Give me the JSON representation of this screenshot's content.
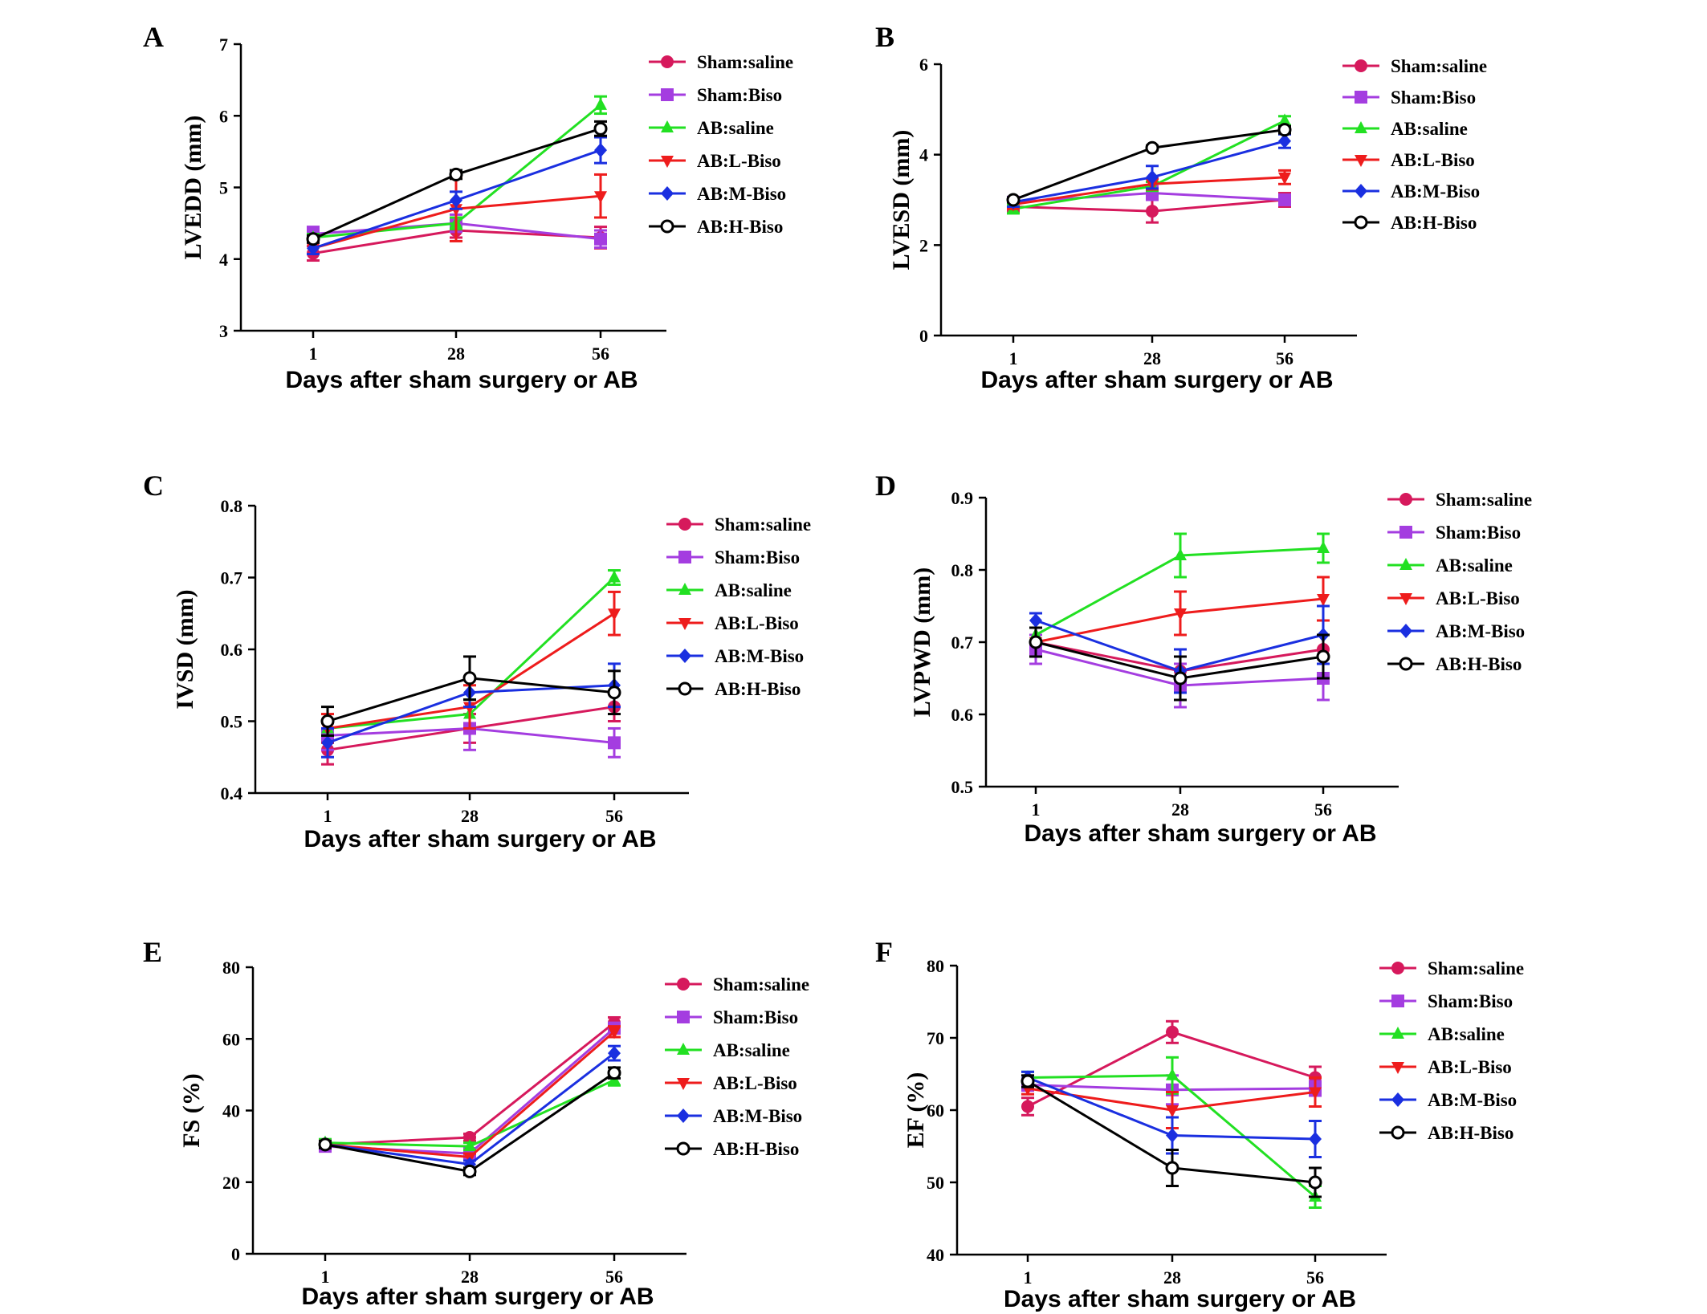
{
  "chart_data": [
    {
      "type": "line",
      "panel": "A",
      "ylabel": "LVEDD (mm)",
      "xlabel": "Days after sham surgery or AB",
      "x": [
        1,
        28,
        56
      ],
      "ylim": [
        3,
        7
      ],
      "yticks": [
        3,
        4,
        5,
        6,
        7
      ],
      "series": [
        {
          "name": "Sham:saline",
          "values": [
            4.08,
            4.4,
            4.3
          ],
          "errors": [
            0.1,
            0.1,
            0.15
          ]
        },
        {
          "name": "Sham:Biso",
          "values": [
            4.35,
            4.5,
            4.28
          ],
          "errors": [
            0.1,
            0.12,
            0.12
          ]
        },
        {
          "name": "AB:saline",
          "values": [
            4.3,
            4.5,
            6.15
          ],
          "errors": [
            0.05,
            0.08,
            0.12
          ]
        },
        {
          "name": "AB:L-Biso",
          "values": [
            4.15,
            4.7,
            4.88
          ],
          "errors": [
            0.08,
            0.45,
            0.3
          ]
        },
        {
          "name": "AB:M-Biso",
          "values": [
            4.15,
            4.82,
            5.52
          ],
          "errors": [
            0.08,
            0.12,
            0.18
          ]
        },
        {
          "name": "AB:H-Biso",
          "values": [
            4.28,
            5.18,
            5.82
          ],
          "errors": [
            0.05,
            0.06,
            0.1
          ]
        }
      ]
    },
    {
      "type": "line",
      "panel": "B",
      "ylabel": "LVESD (mm)",
      "xlabel": "Days after sham surgery or AB",
      "x": [
        1,
        28,
        56
      ],
      "ylim": [
        0,
        6
      ],
      "yticks": [
        0,
        2,
        4,
        6
      ],
      "series": [
        {
          "name": "Sham:saline",
          "values": [
            2.85,
            2.75,
            3.0
          ],
          "errors": [
            0.1,
            0.25,
            0.15
          ]
        },
        {
          "name": "Sham:Biso",
          "values": [
            2.95,
            3.15,
            3.0
          ],
          "errors": [
            0.1,
            0.15,
            0.1
          ]
        },
        {
          "name": "AB:saline",
          "values": [
            2.8,
            3.3,
            4.75
          ],
          "errors": [
            0.1,
            0.1,
            0.1
          ]
        },
        {
          "name": "AB:L-Biso",
          "values": [
            2.9,
            3.35,
            3.5
          ],
          "errors": [
            0.1,
            0.12,
            0.15
          ]
        },
        {
          "name": "AB:M-Biso",
          "values": [
            2.95,
            3.5,
            4.3
          ],
          "errors": [
            0.1,
            0.25,
            0.15
          ]
        },
        {
          "name": "AB:H-Biso",
          "values": [
            3.0,
            4.15,
            4.55
          ],
          "errors": [
            0.05,
            0.05,
            0.08
          ]
        }
      ]
    },
    {
      "type": "line",
      "panel": "C",
      "ylabel": "IVSD (mm)",
      "xlabel": "Days after sham surgery or AB",
      "x": [
        1,
        28,
        56
      ],
      "ylim": [
        0.4,
        0.8
      ],
      "yticks": [
        0.4,
        0.5,
        0.6,
        0.7,
        0.8
      ],
      "series": [
        {
          "name": "Sham:saline",
          "values": [
            0.46,
            0.49,
            0.52
          ],
          "errors": [
            0.02,
            0.02,
            0.02
          ]
        },
        {
          "name": "Sham:Biso",
          "values": [
            0.48,
            0.49,
            0.47
          ],
          "errors": [
            0.02,
            0.03,
            0.02
          ]
        },
        {
          "name": "AB:saline",
          "values": [
            0.49,
            0.51,
            0.7
          ],
          "errors": [
            0.01,
            0.02,
            0.01
          ]
        },
        {
          "name": "AB:L-Biso",
          "values": [
            0.49,
            0.52,
            0.65
          ],
          "errors": [
            0.02,
            0.03,
            0.03
          ]
        },
        {
          "name": "AB:M-Biso",
          "values": [
            0.47,
            0.54,
            0.55
          ],
          "errors": [
            0.02,
            0.02,
            0.03
          ]
        },
        {
          "name": "AB:H-Biso",
          "values": [
            0.5,
            0.56,
            0.54
          ],
          "errors": [
            0.02,
            0.03,
            0.03
          ]
        }
      ]
    },
    {
      "type": "line",
      "panel": "D",
      "ylabel": "LVPWD (mm)",
      "xlabel": "Days after sham surgery or AB",
      "x": [
        1,
        28,
        56
      ],
      "ylim": [
        0.5,
        0.9
      ],
      "yticks": [
        0.5,
        0.6,
        0.7,
        0.8,
        0.9
      ],
      "series": [
        {
          "name": "Sham:saline",
          "values": [
            0.7,
            0.66,
            0.69
          ],
          "errors": [
            0.01,
            0.02,
            0.02
          ]
        },
        {
          "name": "Sham:Biso",
          "values": [
            0.69,
            0.64,
            0.65
          ],
          "errors": [
            0.02,
            0.03,
            0.03
          ]
        },
        {
          "name": "AB:saline",
          "values": [
            0.71,
            0.82,
            0.83
          ],
          "errors": [
            0.01,
            0.03,
            0.02
          ]
        },
        {
          "name": "AB:L-Biso",
          "values": [
            0.7,
            0.74,
            0.76
          ],
          "errors": [
            0.02,
            0.03,
            0.03
          ]
        },
        {
          "name": "AB:M-Biso",
          "values": [
            0.73,
            0.66,
            0.71
          ],
          "errors": [
            0.01,
            0.03,
            0.04
          ]
        },
        {
          "name": "AB:H-Biso",
          "values": [
            0.7,
            0.65,
            0.68
          ],
          "errors": [
            0.02,
            0.03,
            0.03
          ]
        }
      ]
    },
    {
      "type": "line",
      "panel": "E",
      "ylabel": "FS (%)",
      "xlabel": "Days after sham surgery or AB",
      "x": [
        1,
        28,
        56
      ],
      "ylim": [
        0,
        80
      ],
      "yticks": [
        0,
        20,
        40,
        60,
        80
      ],
      "series": [
        {
          "name": "Sham:saline",
          "values": [
            30.5,
            32.5,
            64.5
          ],
          "errors": [
            1,
            1,
            1.5
          ]
        },
        {
          "name": "Sham:Biso",
          "values": [
            30,
            28,
            63
          ],
          "errors": [
            1,
            1,
            1.5
          ]
        },
        {
          "name": "AB:saline",
          "values": [
            31,
            30,
            48.5
          ],
          "errors": [
            1,
            1,
            1.5
          ]
        },
        {
          "name": "AB:L-Biso",
          "values": [
            30.5,
            27,
            62
          ],
          "errors": [
            1,
            1,
            1.5
          ]
        },
        {
          "name": "AB:M-Biso",
          "values": [
            30.5,
            25,
            56
          ],
          "errors": [
            1,
            1,
            2
          ]
        },
        {
          "name": "AB:H-Biso",
          "values": [
            30.5,
            23,
            50.5
          ],
          "errors": [
            1,
            1,
            1.5
          ]
        }
      ]
    },
    {
      "type": "line",
      "panel": "F",
      "ylabel": "EF (%)",
      "xlabel": "Days after sham surgery or AB",
      "x": [
        1,
        28,
        56
      ],
      "ylim": [
        40,
        80
      ],
      "yticks": [
        40,
        50,
        60,
        70,
        80
      ],
      "series": [
        {
          "name": "Sham:saline",
          "values": [
            60.5,
            70.8,
            64.5
          ],
          "errors": [
            1.2,
            1.5,
            1.5
          ]
        },
        {
          "name": "Sham:Biso",
          "values": [
            63.5,
            62.8,
            63
          ],
          "errors": [
            0.8,
            2,
            1
          ]
        },
        {
          "name": "AB:saline",
          "values": [
            64.5,
            64.8,
            48
          ],
          "errors": [
            0.8,
            2.5,
            1.5
          ]
        },
        {
          "name": "AB:L-Biso",
          "values": [
            63,
            60,
            62.5
          ],
          "errors": [
            0.8,
            2.5,
            2
          ]
        },
        {
          "name": "AB:M-Biso",
          "values": [
            64.5,
            56.5,
            56
          ],
          "errors": [
            0.8,
            2.5,
            2.5
          ]
        },
        {
          "name": "AB:H-Biso",
          "values": [
            64,
            52,
            50
          ],
          "errors": [
            0.8,
            2.5,
            2
          ]
        }
      ]
    }
  ],
  "series_styles": [
    {
      "name": "Sham:saline",
      "color": "#d6195c",
      "marker": "circle"
    },
    {
      "name": "Sham:Biso",
      "color": "#a43de0",
      "marker": "square"
    },
    {
      "name": "AB:saline",
      "color": "#22e022",
      "marker": "triangle-up"
    },
    {
      "name": "AB:L-Biso",
      "color": "#ee1c1c",
      "marker": "triangle-down"
    },
    {
      "name": "AB:M-Biso",
      "color": "#1a2fe0",
      "marker": "diamond"
    },
    {
      "name": "AB:H-Biso",
      "color": "#000000",
      "marker": "open-circle"
    }
  ]
}
